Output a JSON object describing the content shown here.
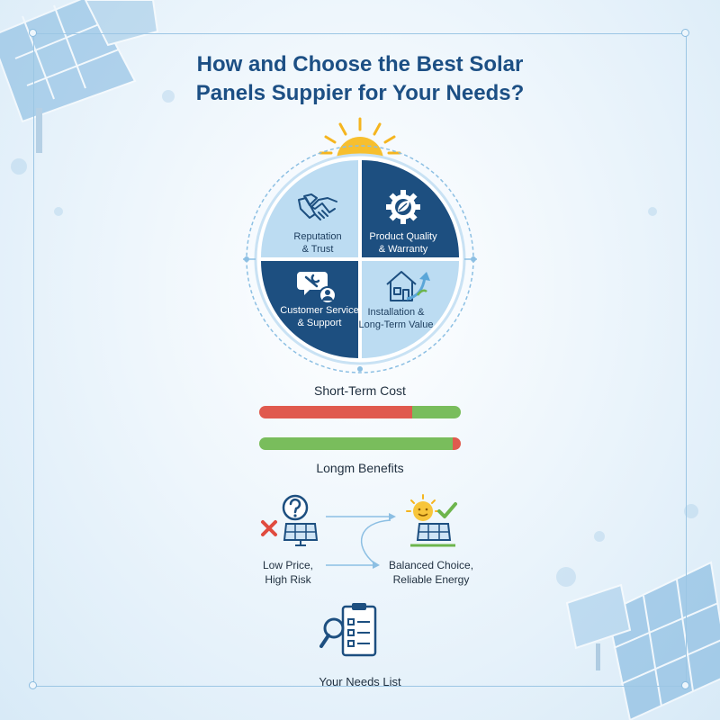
{
  "title": {
    "line1": "How and Choose the Best Solar",
    "line2": "Panels Suppier for Your Needs?"
  },
  "quadrants": [
    {
      "label_lines": [
        "Reputation",
        "& Trust"
      ],
      "icon": "handshake-icon",
      "tone": "light"
    },
    {
      "label_lines": [
        "Product Quality",
        "& Warranty"
      ],
      "icon": "gear-leaf-icon",
      "tone": "dark"
    },
    {
      "label_lines": [
        "Customer Service",
        "& Support"
      ],
      "icon": "support-chat-icon",
      "tone": "dark"
    },
    {
      "label_lines": [
        "Installation &",
        "Long-Term Value"
      ],
      "icon": "house-growth-icon",
      "tone": "light"
    }
  ],
  "bars": {
    "short_term": {
      "label": "Short-Term Cost",
      "red_fraction": 0.76,
      "green_fraction": 0.24
    },
    "long_term": {
      "label": "Longm Benefits",
      "green_fraction": 0.96,
      "red_fraction": 0.04
    }
  },
  "comparison": {
    "left_lines": [
      "Low Price,",
      "High Risk"
    ],
    "left_icon": "question-risk-panel-icon",
    "right_lines": [
      "Balanced Choice,",
      "Reliable Energy"
    ],
    "right_icon": "sun-check-panel-icon"
  },
  "needs": {
    "label": "Your Needs List",
    "icon": "checklist-magnifier-icon"
  },
  "colors": {
    "dark_blue": "#1d4f80",
    "light_blue": "#bcdcf2",
    "title_blue": "#1c4f84",
    "red": "#e05a4e",
    "green": "#79bd5c",
    "sun": "#f5b51f"
  }
}
